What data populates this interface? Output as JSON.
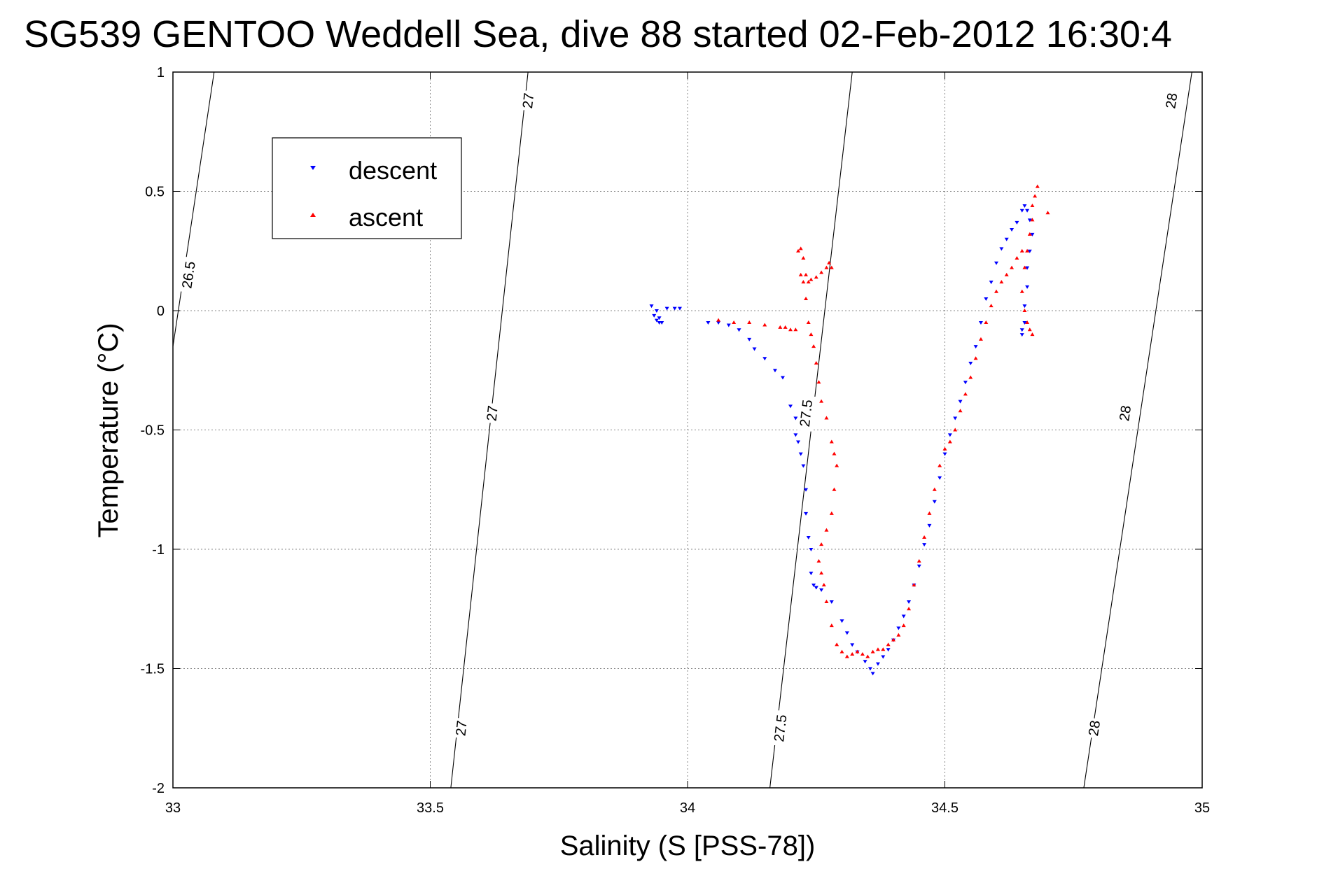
{
  "chart_data": {
    "type": "scatter",
    "title": "SG539 GENTOO Weddell Sea, dive 88 started 02-Feb-2012 16:30:4",
    "xlabel": "Salinity (S [PSS-78])",
    "ylabel": "Temperature (°C)",
    "xlim": [
      33,
      35
    ],
    "ylim": [
      -2,
      1
    ],
    "x_ticks": [
      "33",
      "33.5",
      "34",
      "34.5",
      "35"
    ],
    "y_ticks": [
      "1",
      "0.5",
      "0",
      "-0.5",
      "-1",
      "-1.5",
      "-2"
    ],
    "grid": true,
    "legend_position": "top-left",
    "legend": [
      {
        "name": "descent",
        "color": "#0000ff",
        "marker": "triangle-down"
      },
      {
        "name": "ascent",
        "color": "#ff0000",
        "marker": "triangle-up"
      }
    ],
    "density_contours": [
      {
        "label": "26.5",
        "points": [
          [
            33.08,
            1.0
          ],
          [
            33.0,
            -0.15
          ]
        ],
        "labels_at": [
          [
            33.03,
            0.15
          ]
        ]
      },
      {
        "label": "27",
        "points": [
          [
            33.69,
            1.0
          ],
          [
            33.54,
            -2.0
          ]
        ],
        "labels_at": [
          [
            33.69,
            0.88
          ],
          [
            33.62,
            -0.43
          ],
          [
            33.56,
            -1.75
          ]
        ]
      },
      {
        "label": "27.5",
        "points": [
          [
            34.32,
            1.0
          ],
          [
            34.16,
            -2.0
          ]
        ],
        "labels_at": [
          [
            34.23,
            -0.43
          ],
          [
            34.18,
            -1.75
          ]
        ]
      },
      {
        "label": "28",
        "points": [
          [
            34.98,
            1.0
          ],
          [
            34.77,
            -2.0
          ]
        ],
        "labels_at": [
          [
            34.94,
            0.88
          ],
          [
            34.85,
            -0.43
          ],
          [
            34.79,
            -1.75
          ]
        ]
      }
    ],
    "series": [
      {
        "name": "descent",
        "color": "#0000ff",
        "x": [
          33.93,
          33.935,
          33.94,
          33.945,
          33.96,
          33.975,
          33.985,
          33.94,
          33.945,
          33.95,
          34.04,
          34.06,
          34.08,
          34.1,
          34.12,
          34.13,
          34.15,
          34.17,
          34.185,
          34.2,
          34.21,
          34.21,
          34.215,
          34.22,
          34.225,
          34.23,
          34.23,
          34.235,
          34.24,
          34.24,
          34.245,
          34.25,
          34.25,
          34.26,
          34.28,
          34.3,
          34.31,
          34.32,
          34.33,
          34.345,
          34.355,
          34.36,
          34.37,
          34.38,
          34.39,
          34.4,
          34.41,
          34.42,
          34.43,
          34.44,
          34.45,
          34.46,
          34.47,
          34.48,
          34.49,
          34.5,
          34.51,
          34.52,
          34.53,
          34.54,
          34.55,
          34.56,
          34.57,
          34.58,
          34.59,
          34.6,
          34.61,
          34.62,
          34.63,
          34.64,
          34.65,
          34.655,
          34.66,
          34.665,
          34.67,
          34.665,
          34.66,
          34.66,
          34.655,
          34.655,
          34.65,
          34.65
        ],
        "y": [
          0.02,
          -0.02,
          -0.04,
          -0.05,
          0.01,
          0.01,
          0.01,
          0.0,
          -0.03,
          -0.05,
          -0.05,
          -0.05,
          -0.06,
          -0.08,
          -0.12,
          -0.16,
          -0.2,
          -0.25,
          -0.28,
          -0.4,
          -0.45,
          -0.52,
          -0.55,
          -0.6,
          -0.65,
          -0.75,
          -0.85,
          -0.95,
          -1.0,
          -1.1,
          -1.15,
          -1.16,
          -1.16,
          -1.17,
          -1.22,
          -1.3,
          -1.35,
          -1.4,
          -1.43,
          -1.47,
          -1.5,
          -1.52,
          -1.48,
          -1.45,
          -1.42,
          -1.38,
          -1.33,
          -1.28,
          -1.22,
          -1.15,
          -1.07,
          -0.98,
          -0.9,
          -0.8,
          -0.7,
          -0.6,
          -0.52,
          -0.45,
          -0.38,
          -0.3,
          -0.22,
          -0.15,
          -0.05,
          0.05,
          0.12,
          0.2,
          0.26,
          0.3,
          0.34,
          0.37,
          0.42,
          0.44,
          0.42,
          0.38,
          0.32,
          0.25,
          0.18,
          0.1,
          0.02,
          -0.05,
          -0.08,
          -0.1
        ]
      },
      {
        "name": "ascent",
        "color": "#ff0000",
        "x": [
          34.68,
          34.675,
          34.67,
          34.67,
          34.665,
          34.66,
          34.655,
          34.65,
          34.655,
          34.66,
          34.665,
          34.67,
          34.65,
          34.64,
          34.63,
          34.62,
          34.61,
          34.6,
          34.59,
          34.58,
          34.57,
          34.56,
          34.55,
          34.54,
          34.53,
          34.52,
          34.51,
          34.5,
          34.49,
          34.48,
          34.47,
          34.46,
          34.45,
          34.44,
          34.43,
          34.42,
          34.41,
          34.4,
          34.39,
          34.38,
          34.37,
          34.36,
          34.35,
          34.34,
          34.33,
          34.32,
          34.31,
          34.3,
          34.29,
          34.28,
          34.27,
          34.265,
          34.26,
          34.255,
          34.26,
          34.27,
          34.28,
          34.285,
          34.29,
          34.285,
          34.28,
          34.27,
          34.26,
          34.255,
          34.25,
          34.245,
          34.24,
          34.235,
          34.23,
          34.225,
          34.22,
          34.215,
          34.22,
          34.225,
          34.23,
          34.235,
          34.24,
          34.25,
          34.26,
          34.27,
          34.275,
          34.28,
          34.21,
          34.2,
          34.19,
          34.18,
          34.15,
          34.12,
          34.09,
          34.06,
          34.7
        ],
        "y": [
          0.52,
          0.48,
          0.44,
          0.38,
          0.32,
          0.25,
          0.18,
          0.08,
          0.0,
          -0.05,
          -0.08,
          -0.1,
          0.25,
          0.22,
          0.18,
          0.15,
          0.12,
          0.08,
          0.02,
          -0.05,
          -0.12,
          -0.2,
          -0.28,
          -0.35,
          -0.42,
          -0.5,
          -0.55,
          -0.58,
          -0.65,
          -0.75,
          -0.85,
          -0.95,
          -1.05,
          -1.15,
          -1.25,
          -1.32,
          -1.36,
          -1.38,
          -1.4,
          -1.42,
          -1.42,
          -1.43,
          -1.45,
          -1.44,
          -1.43,
          -1.44,
          -1.45,
          -1.43,
          -1.4,
          -1.32,
          -1.22,
          -1.15,
          -1.1,
          -1.05,
          -0.98,
          -0.92,
          -0.85,
          -0.75,
          -0.65,
          -0.6,
          -0.55,
          -0.45,
          -0.38,
          -0.3,
          -0.22,
          -0.15,
          -0.1,
          -0.05,
          0.05,
          0.12,
          0.15,
          0.25,
          0.26,
          0.22,
          0.15,
          0.12,
          0.13,
          0.14,
          0.16,
          0.18,
          0.2,
          0.18,
          -0.08,
          -0.08,
          -0.07,
          -0.07,
          -0.06,
          -0.05,
          -0.05,
          -0.04,
          0.41
        ]
      }
    ]
  }
}
